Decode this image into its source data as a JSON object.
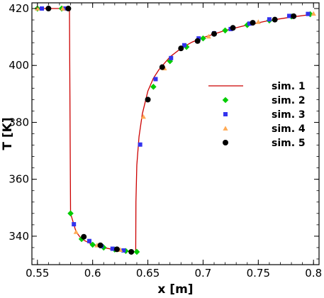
{
  "chart_data": {
    "type": "line",
    "xlabel": "x [m]",
    "ylabel": "T [K]",
    "xlim": [
      0.545,
      0.805
    ],
    "ylim": [
      330,
      422
    ],
    "x_ticks": [
      0.55,
      0.6,
      0.65,
      0.7,
      0.75,
      0.8
    ],
    "x_tick_labels": [
      "0.55",
      "0.6",
      "0.65",
      "0.7",
      "0.75",
      "0.8"
    ],
    "y_ticks": [
      340,
      360,
      380,
      400,
      420
    ],
    "y_tick_labels": [
      "340",
      "360",
      "380",
      "400",
      "420"
    ],
    "grid": false,
    "legend_position": "right",
    "series": [
      {
        "name": "sim. 1",
        "style": "line",
        "color": "#cc0000",
        "x": [
          0.55,
          0.579,
          0.5795,
          0.58,
          0.585,
          0.59,
          0.6,
          0.61,
          0.62,
          0.63,
          0.639,
          0.6392,
          0.64,
          0.642,
          0.645,
          0.65,
          0.655,
          0.66,
          0.67,
          0.68,
          0.69,
          0.7,
          0.72,
          0.74,
          0.76,
          0.78,
          0.8
        ],
        "y": [
          420,
          420,
          384,
          348,
          341.5,
          339,
          337,
          336,
          335.2,
          334.7,
          334.5,
          352,
          365,
          375,
          383,
          391,
          395.5,
          398.5,
          403,
          406,
          408.2,
          409.8,
          412.3,
          414.2,
          415.8,
          417,
          418
        ]
      },
      {
        "name": "sim. 2",
        "style": "marker",
        "marker": "diamond",
        "color": "#00cc00",
        "x": [
          0.55,
          0.572,
          0.58,
          0.59,
          0.6,
          0.61,
          0.62,
          0.63,
          0.64,
          0.655,
          0.67,
          0.685,
          0.7,
          0.72,
          0.74,
          0.76,
          0.78,
          0.797
        ],
        "y": [
          420,
          420,
          348,
          339,
          337,
          336,
          335.3,
          334.8,
          334.5,
          392.5,
          401.5,
          406.5,
          409.5,
          412.3,
          414.2,
          415.8,
          417.2,
          418
        ]
      },
      {
        "name": "sim. 3",
        "style": "marker",
        "marker": "square",
        "color": "#3333ee",
        "x": [
          0.554,
          0.575,
          0.583,
          0.597,
          0.608,
          0.618,
          0.628,
          0.643,
          0.657,
          0.671,
          0.683,
          0.696,
          0.71,
          0.725,
          0.742,
          0.76,
          0.778,
          0.795
        ],
        "y": [
          420,
          420,
          344.2,
          338.3,
          336.5,
          335.6,
          335,
          372.2,
          395.2,
          402.6,
          407.1,
          409.5,
          411.3,
          412.8,
          414.7,
          416.2,
          417.4,
          418.1
        ]
      },
      {
        "name": "sim. 4",
        "style": "marker",
        "marker": "triangle",
        "color": "#ffaa55",
        "x": [
          0.55,
          0.573,
          0.585,
          0.604,
          0.625,
          0.646,
          0.665,
          0.705,
          0.75,
          0.8
        ],
        "y": [
          420,
          420,
          341.5,
          336.8,
          335.2,
          382,
          399,
          410.2,
          415.3,
          418.2
        ]
      },
      {
        "name": "sim. 5",
        "style": "marker",
        "marker": "circle",
        "color": "#000000",
        "x": [
          0.56,
          0.578,
          0.592,
          0.607,
          0.622,
          0.635,
          0.65,
          0.663,
          0.68,
          0.695,
          0.71,
          0.727,
          0.745,
          0.765,
          0.782
        ],
        "y": [
          420,
          420,
          339.8,
          336.8,
          335.4,
          334.5,
          388,
          399.4,
          406,
          408.6,
          411.1,
          413.2,
          415,
          416.1,
          417.3
        ]
      }
    ]
  }
}
